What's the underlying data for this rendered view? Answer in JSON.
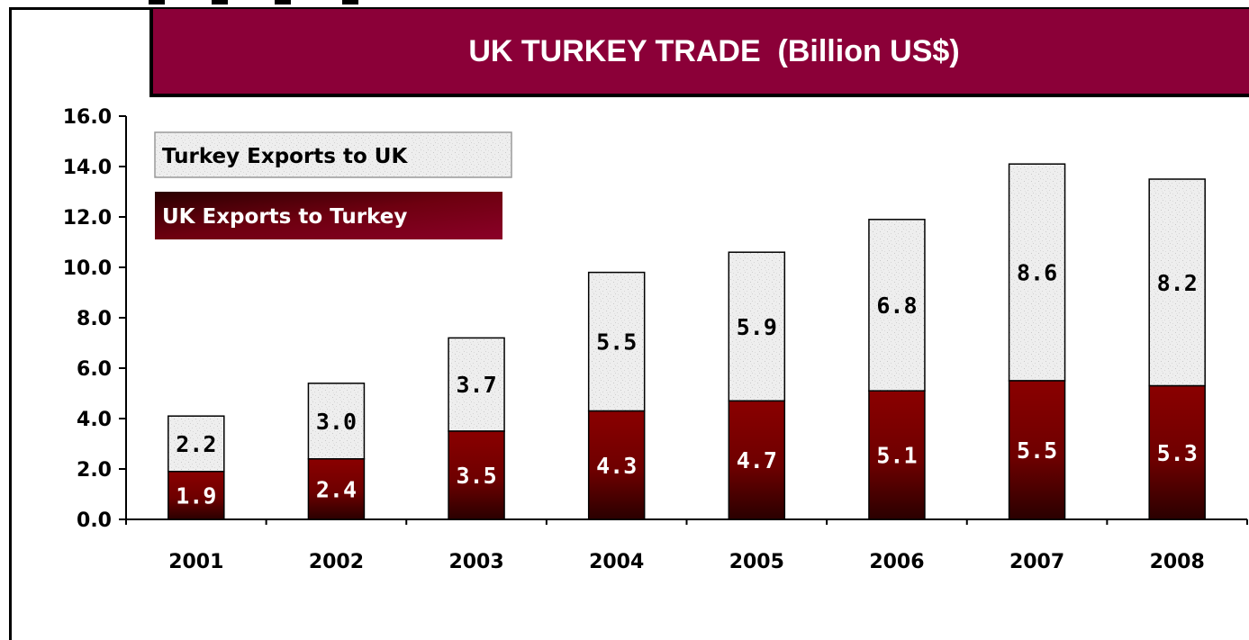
{
  "chart_data": {
    "type": "bar",
    "stacked": true,
    "title": "UK TURKEY TRADE  (Billion US$)",
    "categories": [
      "2001",
      "2002",
      "2003",
      "2004",
      "2005",
      "2006",
      "2007",
      "2008"
    ],
    "series": [
      {
        "name": "UK Exports to Turkey",
        "values": [
          1.9,
          2.4,
          3.5,
          4.3,
          4.7,
          5.1,
          5.5,
          5.3
        ],
        "color": "#7a0000"
      },
      {
        "name": "Turkey Exports to UK",
        "values": [
          2.2,
          3.0,
          3.7,
          5.5,
          5.9,
          6.8,
          8.6,
          8.2
        ],
        "color": "#eeeeee"
      }
    ],
    "ylim": [
      0,
      16
    ],
    "yticks": [
      "0.0",
      "2.0",
      "4.0",
      "6.0",
      "8.0",
      "10.0",
      "12.0",
      "14.0",
      "16.0"
    ],
    "legend_position": "top-left",
    "grid": false
  }
}
